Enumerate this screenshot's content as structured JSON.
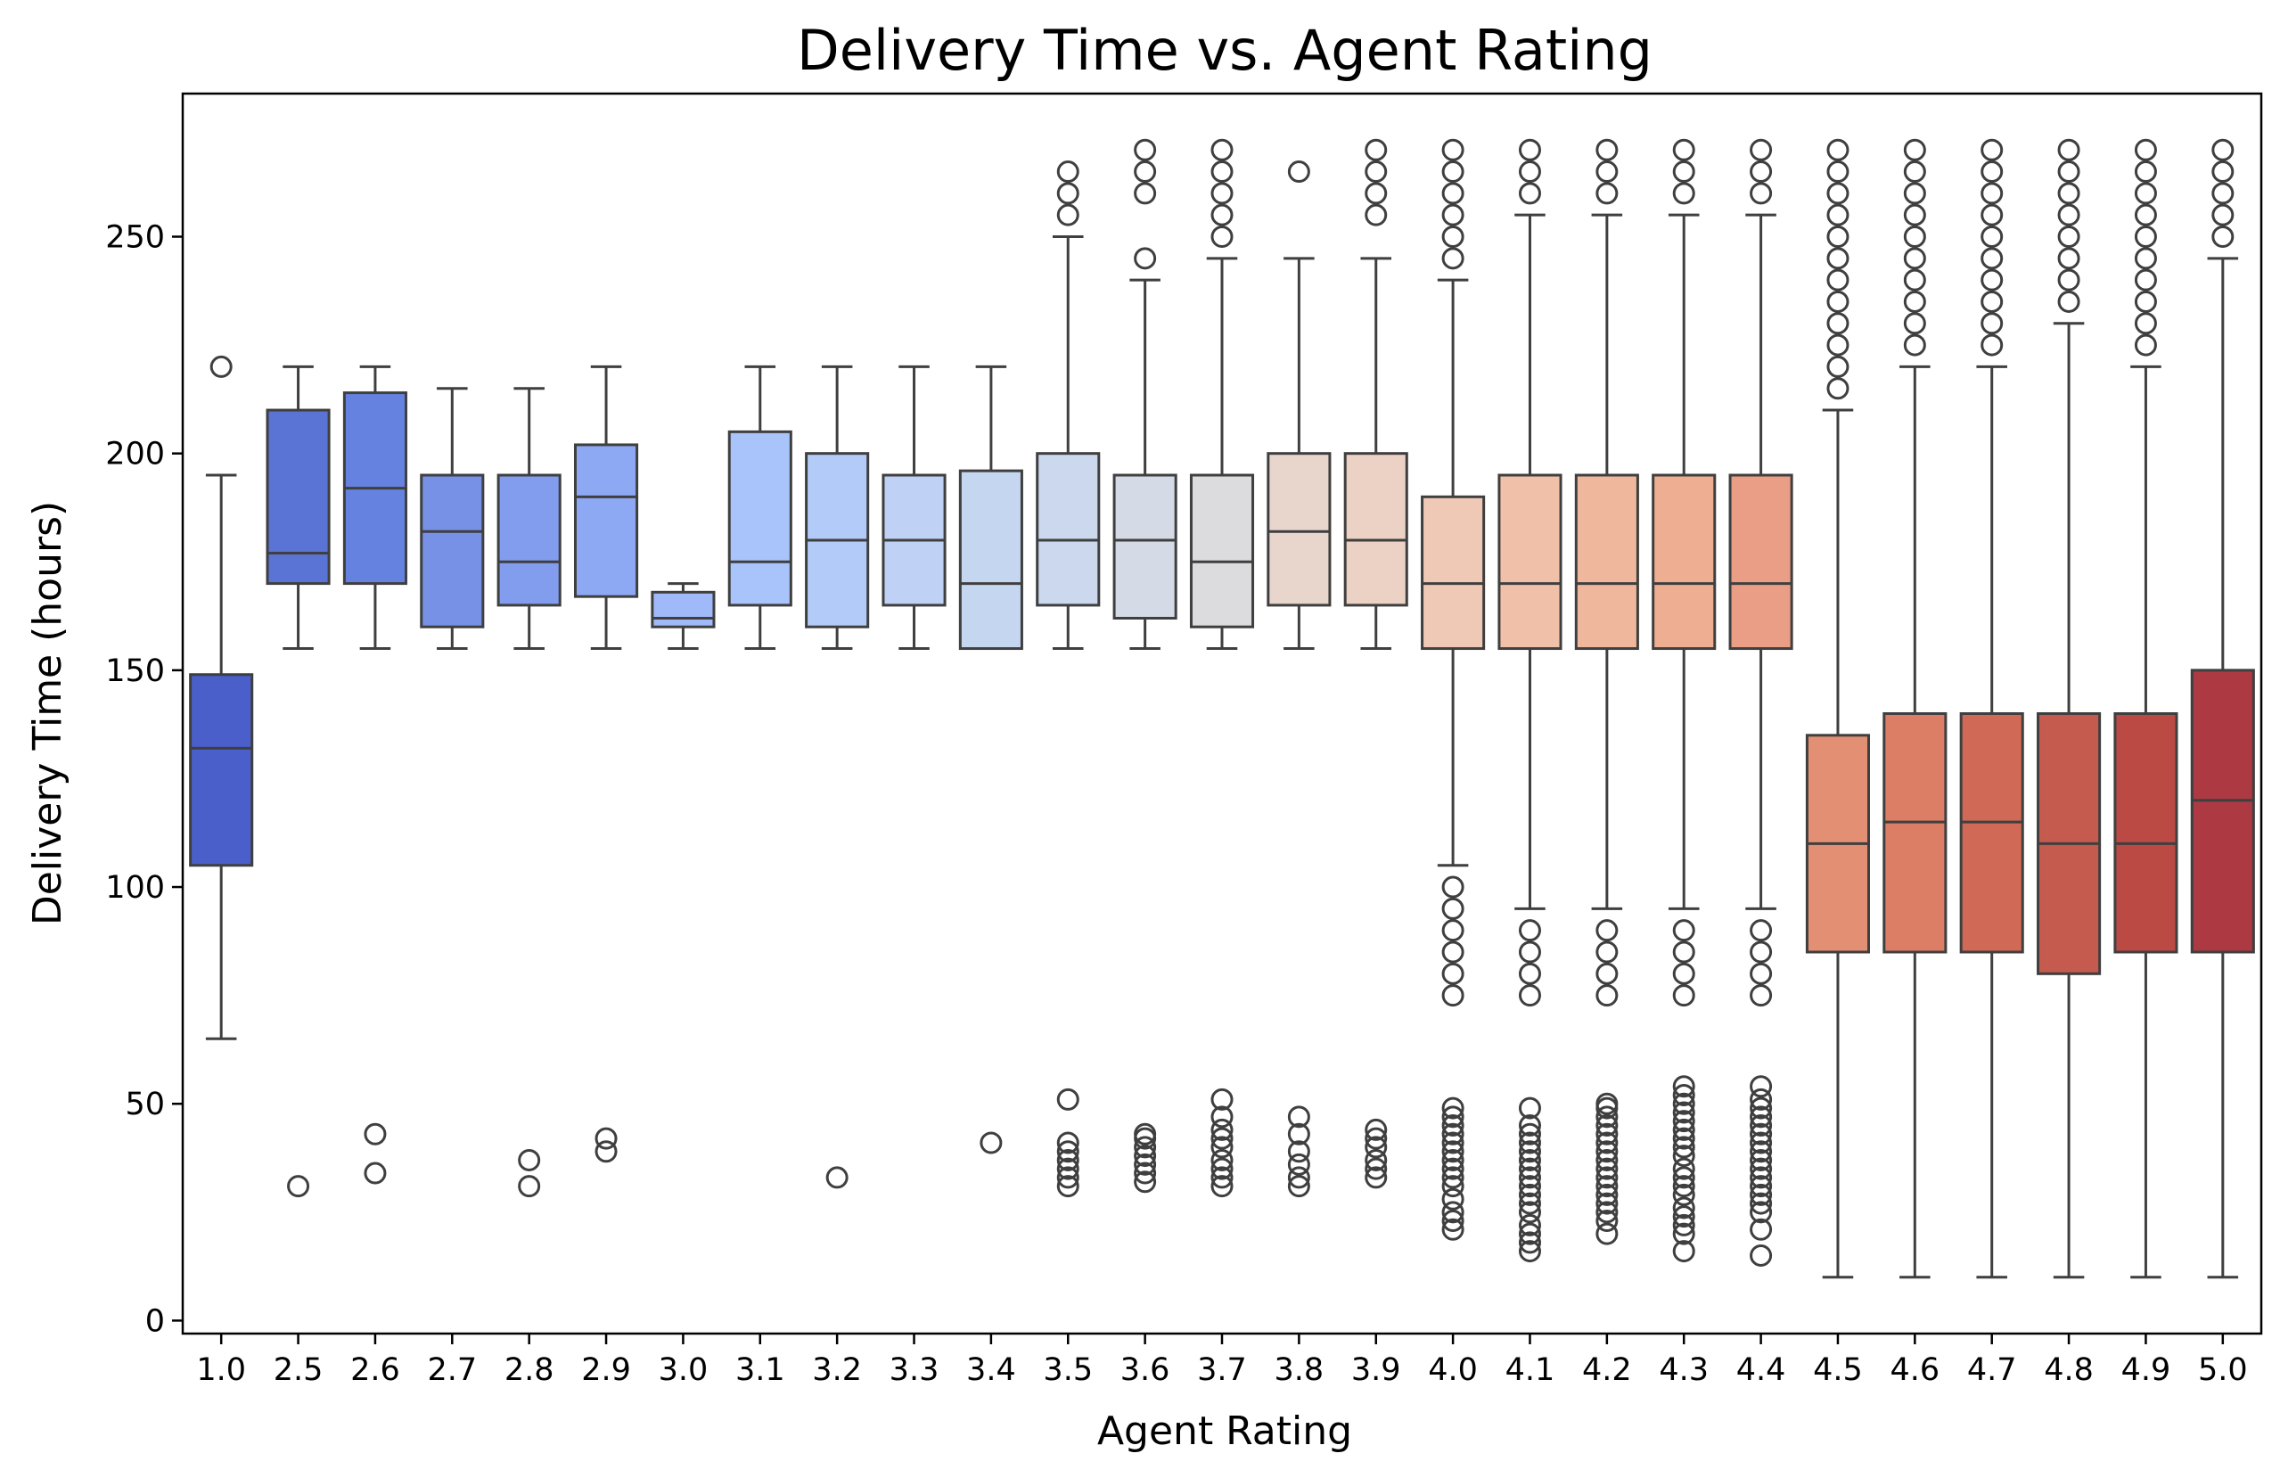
{
  "chart_data": {
    "type": "box",
    "title": "Delivery Time vs. Agent Rating",
    "xlabel": "Agent Rating",
    "ylabel": "Delivery Time (hours)",
    "ylim": [
      -3,
      283
    ],
    "yticks": [
      0,
      50,
      100,
      150,
      200,
      250
    ],
    "grid": false,
    "legend": "none",
    "categories": [
      "1.0",
      "2.5",
      "2.6",
      "2.7",
      "2.8",
      "2.9",
      "3.0",
      "3.1",
      "3.2",
      "3.3",
      "3.4",
      "3.5",
      "3.6",
      "3.7",
      "3.8",
      "3.9",
      "4.0",
      "4.1",
      "4.2",
      "4.3",
      "4.4",
      "4.5",
      "4.6",
      "4.7",
      "4.8",
      "4.9",
      "5.0"
    ],
    "colors": [
      "#4a5fc9",
      "#5a74d6",
      "#6682e0",
      "#7691e6",
      "#829ded",
      "#8ea9f3",
      "#9fb9f9",
      "#a9c4fb",
      "#b3cbf8",
      "#bfd2f5",
      "#c5d6f1",
      "#cbd8ee",
      "#d4dbe6",
      "#dcdcde",
      "#e8d6cd",
      "#ecd2c4",
      "#efc8b6",
      "#f0c0a8",
      "#efb89c",
      "#eeae92",
      "#e99e85",
      "#e38f73",
      "#dc7d66",
      "#d06a57",
      "#c55a4e",
      "#bb4a45",
      "#ad3a42"
    ],
    "boxes": [
      {
        "q1": 105,
        "median": 132,
        "q3": 149,
        "whisker_low": 65,
        "whisker_high": 195,
        "outliers": [
          220
        ]
      },
      {
        "q1": 170,
        "median": 177,
        "q3": 210,
        "whisker_low": 155,
        "whisker_high": 220,
        "outliers": [
          31
        ]
      },
      {
        "q1": 170,
        "median": 192,
        "q3": 214,
        "whisker_low": 155,
        "whisker_high": 220,
        "outliers": [
          34,
          43
        ]
      },
      {
        "q1": 160,
        "median": 182,
        "q3": 195,
        "whisker_low": 155,
        "whisker_high": 215,
        "outliers": []
      },
      {
        "q1": 165,
        "median": 175,
        "q3": 195,
        "whisker_low": 155,
        "whisker_high": 215,
        "outliers": [
          31,
          37
        ]
      },
      {
        "q1": 167,
        "median": 190,
        "q3": 202,
        "whisker_low": 155,
        "whisker_high": 220,
        "outliers": [
          39,
          42
        ]
      },
      {
        "q1": 160,
        "median": 162,
        "q3": 168,
        "whisker_low": 155,
        "whisker_high": 170,
        "outliers": []
      },
      {
        "q1": 165,
        "median": 175,
        "q3": 205,
        "whisker_low": 155,
        "whisker_high": 220,
        "outliers": []
      },
      {
        "q1": 160,
        "median": 180,
        "q3": 200,
        "whisker_low": 155,
        "whisker_high": 220,
        "outliers": [
          33
        ]
      },
      {
        "q1": 165,
        "median": 180,
        "q3": 195,
        "whisker_low": 155,
        "whisker_high": 220,
        "outliers": []
      },
      {
        "q1": 155,
        "median": 170,
        "q3": 196,
        "whisker_low": 155,
        "whisker_high": 220,
        "outliers": [
          41
        ]
      },
      {
        "q1": 165,
        "median": 180,
        "q3": 200,
        "whisker_low": 155,
        "whisker_high": 250,
        "outliers": [
          31,
          33,
          35,
          37,
          39,
          41,
          51,
          255,
          260,
          265
        ]
      },
      {
        "q1": 162,
        "median": 180,
        "q3": 195,
        "whisker_low": 155,
        "whisker_high": 240,
        "outliers": [
          32,
          34,
          36,
          38,
          40,
          42,
          43,
          245,
          260,
          265,
          270
        ]
      },
      {
        "q1": 160,
        "median": 175,
        "q3": 195,
        "whisker_low": 155,
        "whisker_high": 245,
        "outliers": [
          31,
          33,
          35,
          37,
          40,
          42,
          44,
          47,
          51,
          250,
          255,
          260,
          265,
          270
        ]
      },
      {
        "q1": 165,
        "median": 182,
        "q3": 200,
        "whisker_low": 155,
        "whisker_high": 245,
        "outliers": [
          31,
          33,
          36,
          39,
          43,
          47,
          265
        ]
      },
      {
        "q1": 165,
        "median": 180,
        "q3": 200,
        "whisker_low": 155,
        "whisker_high": 245,
        "outliers": [
          33,
          35,
          37,
          40,
          42,
          44,
          255,
          260,
          265,
          270
        ]
      },
      {
        "q1": 155,
        "median": 170,
        "q3": 190,
        "whisker_low": 105,
        "whisker_high": 240,
        "outliers": [
          21,
          23,
          25,
          28,
          31,
          33,
          35,
          37,
          39,
          41,
          43,
          45,
          47,
          49,
          75,
          80,
          85,
          90,
          95,
          100,
          245,
          250,
          255,
          260,
          265,
          270
        ]
      },
      {
        "q1": 155,
        "median": 170,
        "q3": 195,
        "whisker_low": 95,
        "whisker_high": 255,
        "outliers": [
          16,
          18,
          20,
          22,
          25,
          27,
          29,
          31,
          33,
          35,
          37,
          39,
          41,
          43,
          45,
          49,
          75,
          80,
          85,
          90,
          260,
          265,
          270
        ]
      },
      {
        "q1": 155,
        "median": 170,
        "q3": 195,
        "whisker_low": 95,
        "whisker_high": 255,
        "outliers": [
          20,
          23,
          25,
          27,
          29,
          31,
          33,
          35,
          37,
          39,
          41,
          43,
          45,
          47,
          49,
          50,
          75,
          80,
          85,
          90,
          260,
          265,
          270
        ]
      },
      {
        "q1": 155,
        "median": 170,
        "q3": 195,
        "whisker_low": 95,
        "whisker_high": 255,
        "outliers": [
          16,
          20,
          22,
          24,
          26,
          29,
          31,
          33,
          35,
          38,
          40,
          42,
          44,
          46,
          48,
          50,
          52,
          54,
          75,
          80,
          85,
          90,
          260,
          265,
          270
        ]
      },
      {
        "q1": 155,
        "median": 170,
        "q3": 195,
        "whisker_low": 95,
        "whisker_high": 255,
        "outliers": [
          15,
          21,
          25,
          27,
          29,
          31,
          33,
          35,
          37,
          39,
          41,
          43,
          45,
          47,
          49,
          51,
          54,
          75,
          80,
          85,
          90,
          260,
          265,
          270
        ]
      },
      {
        "q1": 85,
        "median": 110,
        "q3": 135,
        "whisker_low": 10,
        "whisker_high": 210,
        "outliers": [
          215,
          220,
          225,
          230,
          235,
          240,
          245,
          250,
          255,
          260,
          265,
          270
        ]
      },
      {
        "q1": 85,
        "median": 115,
        "q3": 140,
        "whisker_low": 10,
        "whisker_high": 220,
        "outliers": [
          225,
          230,
          235,
          240,
          245,
          250,
          255,
          260,
          265,
          270
        ]
      },
      {
        "q1": 85,
        "median": 115,
        "q3": 140,
        "whisker_low": 10,
        "whisker_high": 220,
        "outliers": [
          225,
          230,
          235,
          240,
          245,
          250,
          255,
          260,
          265,
          270
        ]
      },
      {
        "q1": 80,
        "median": 110,
        "q3": 140,
        "whisker_low": 10,
        "whisker_high": 230,
        "outliers": [
          235,
          240,
          245,
          250,
          255,
          260,
          265,
          270
        ]
      },
      {
        "q1": 85,
        "median": 110,
        "q3": 140,
        "whisker_low": 10,
        "whisker_high": 220,
        "outliers": [
          225,
          230,
          235,
          240,
          245,
          250,
          255,
          260,
          265,
          270
        ]
      },
      {
        "q1": 85,
        "median": 120,
        "q3": 150,
        "whisker_low": 10,
        "whisker_high": 245,
        "outliers": [
          250,
          255,
          260,
          265,
          270
        ]
      }
    ]
  }
}
